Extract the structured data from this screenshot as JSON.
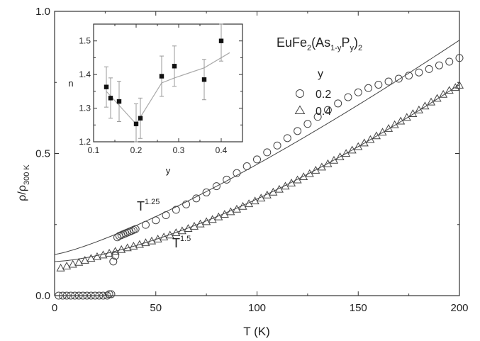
{
  "chart_data": [
    {
      "type": "scatter",
      "title": "",
      "xlabel": "T (K)",
      "ylabel": "ρ/ρ300 K",
      "ylabel_main": "ρ/ρ",
      "ylabel_sub": "300 K",
      "xlim": [
        0,
        200
      ],
      "ylim": [
        0,
        1.0
      ],
      "x_ticks": [
        0,
        50,
        100,
        150,
        200
      ],
      "x_tick_labels": [
        "0",
        "50",
        "100",
        "150",
        "200"
      ],
      "y_ticks": [
        0.0,
        0.5,
        1.0
      ],
      "y_tick_labels": [
        "0.0",
        "0.5",
        "1.0"
      ],
      "grid": false,
      "legend": {
        "compound_parts": [
          "EuFe",
          "2",
          "(As",
          "1-y",
          "P",
          "y",
          ")",
          "2"
        ],
        "header": "y",
        "placement": "top-right",
        "entries": [
          {
            "label": "0.2",
            "marker": "circle"
          },
          {
            "label": "0.4",
            "marker": "triangle"
          }
        ]
      },
      "annotations": [
        {
          "base": "T",
          "exp": "1.25"
        },
        {
          "base": "T",
          "exp": "1.5"
        }
      ],
      "series": [
        {
          "name": "0.2",
          "marker": "circle",
          "x": [
            2,
            4,
            6,
            8,
            10,
            12,
            14,
            16,
            18,
            20,
            22,
            24,
            26,
            27,
            28,
            29,
            30,
            31,
            32,
            33,
            34,
            35,
            36,
            37,
            38,
            39,
            40,
            45,
            50,
            55,
            60,
            65,
            70,
            75,
            80,
            85,
            90,
            95,
            100,
            105,
            110,
            115,
            120,
            125,
            130,
            135,
            140,
            145,
            150,
            155,
            160,
            165,
            170,
            175,
            180,
            185,
            190,
            195,
            200
          ],
          "y": [
            0,
            0,
            0,
            0,
            0,
            0,
            0,
            0,
            0,
            0,
            0,
            0,
            0,
            0.005,
            0.005,
            0.12,
            0.14,
            0.205,
            0.21,
            0.213,
            0.216,
            0.219,
            0.222,
            0.225,
            0.228,
            0.231,
            0.234,
            0.249,
            0.265,
            0.283,
            0.302,
            0.321,
            0.342,
            0.363,
            0.385,
            0.408,
            0.431,
            0.455,
            0.479,
            0.504,
            0.528,
            0.554,
            0.579,
            0.604,
            0.629,
            0.653,
            0.676,
            0.698,
            0.715,
            0.73,
            0.742,
            0.753,
            0.763,
            0.774,
            0.785,
            0.797,
            0.81,
            0.823,
            0.836
          ]
        },
        {
          "name": "0.4",
          "marker": "triangle",
          "x": [
            3,
            6,
            9,
            12,
            15,
            18,
            21,
            24,
            27,
            30,
            33,
            36,
            39,
            42,
            45,
            48,
            51,
            54,
            57,
            60,
            63,
            66,
            69,
            72,
            75,
            78,
            81,
            84,
            87,
            90,
            93,
            96,
            99,
            102,
            105,
            108,
            111,
            114,
            117,
            120,
            123,
            126,
            129,
            132,
            135,
            138,
            141,
            144,
            147,
            150,
            153,
            156,
            159,
            162,
            165,
            168,
            171,
            174,
            177,
            180,
            183,
            186,
            189,
            192,
            195,
            198,
            200
          ],
          "y": [
            0.097,
            0.104,
            0.11,
            0.117,
            0.124,
            0.131,
            0.137,
            0.143,
            0.149,
            0.156,
            0.162,
            0.168,
            0.174,
            0.18,
            0.186,
            0.192,
            0.199,
            0.206,
            0.213,
            0.221,
            0.228,
            0.236,
            0.244,
            0.252,
            0.26,
            0.268,
            0.277,
            0.286,
            0.295,
            0.304,
            0.314,
            0.323,
            0.333,
            0.343,
            0.354,
            0.364,
            0.374,
            0.385,
            0.396,
            0.407,
            0.418,
            0.429,
            0.441,
            0.452,
            0.464,
            0.476,
            0.488,
            0.5,
            0.512,
            0.524,
            0.537,
            0.549,
            0.562,
            0.575,
            0.588,
            0.601,
            0.614,
            0.627,
            0.64,
            0.653,
            0.667,
            0.681,
            0.694,
            0.708,
            0.722,
            0.732,
            0.74
          ]
        }
      ],
      "fits": [
        {
          "x0": 0,
          "x1": 200,
          "a": 0.145,
          "b": 0.001002,
          "n": 1.25
        },
        {
          "x0": 0,
          "x1": 200,
          "a": 0.12,
          "b": 0.00022,
          "n": 1.5
        }
      ]
    },
    {
      "type": "scatter",
      "title": "",
      "xlabel": "y",
      "ylabel": "n",
      "xlim": [
        0.1,
        0.45
      ],
      "ylim": [
        1.2,
        1.55
      ],
      "x_ticks": [
        0.1,
        0.2,
        0.3,
        0.4
      ],
      "x_tick_labels": [
        "0.1",
        "0.2",
        "0.3",
        "0.4"
      ],
      "y_ticks": [
        1.2,
        1.3,
        1.4,
        1.5
      ],
      "y_tick_labels": [
        "1.2",
        "1.3",
        "1.4",
        "1.5"
      ],
      "grid": false,
      "points": [
        {
          "x": 0.13,
          "y": 1.363,
          "err": 0.06
        },
        {
          "x": 0.14,
          "y": 1.33,
          "err": 0.06
        },
        {
          "x": 0.16,
          "y": 1.32,
          "err": 0.06
        },
        {
          "x": 0.2,
          "y": 1.253,
          "err": 0.06
        },
        {
          "x": 0.21,
          "y": 1.27,
          "err": 0.06
        },
        {
          "x": 0.26,
          "y": 1.395,
          "err": 0.06
        },
        {
          "x": 0.29,
          "y": 1.425,
          "err": 0.06
        },
        {
          "x": 0.36,
          "y": 1.385,
          "err": 0.06
        },
        {
          "x": 0.4,
          "y": 1.5,
          "err": 0.06
        }
      ],
      "trend": {
        "x": [
          0.13,
          0.2,
          0.26,
          0.29,
          0.36,
          0.42
        ],
        "y": [
          1.35,
          1.253,
          1.375,
          1.39,
          1.42,
          1.465
        ]
      }
    }
  ]
}
